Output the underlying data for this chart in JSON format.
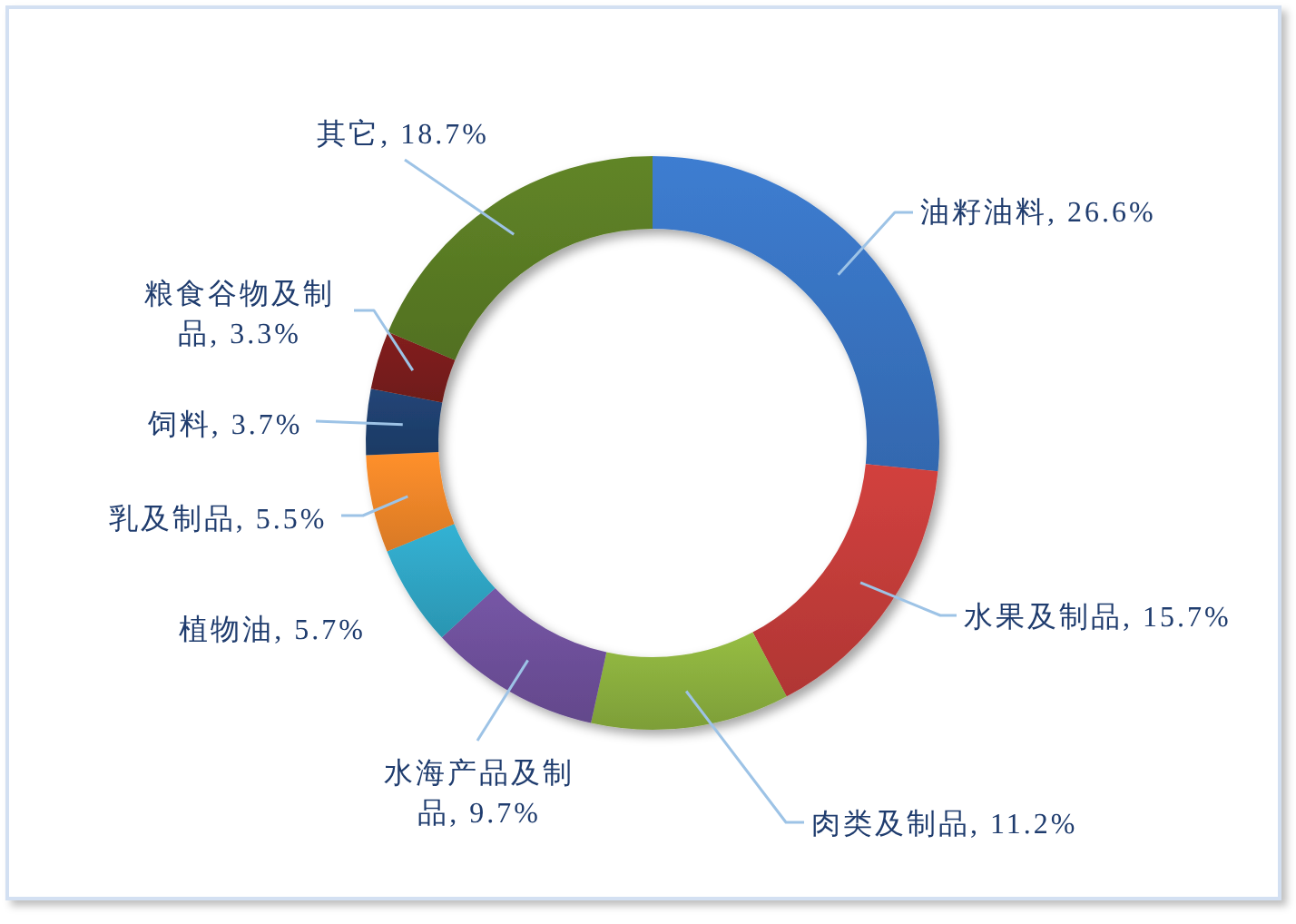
{
  "chart_data": {
    "type": "donut",
    "categories": [
      "油籽油料",
      "水果及制品",
      "肉类及制品",
      "水海产品及制品",
      "植物油",
      "乳及制品",
      "饲料",
      "粮食谷物及制品",
      "其它"
    ],
    "values": [
      26.6,
      15.7,
      11.2,
      9.7,
      5.7,
      5.5,
      3.7,
      3.3,
      18.7
    ],
    "colors": [
      "#3872bf",
      "#c03b39",
      "#89ad3d",
      "#6c4f98",
      "#2fa3c2",
      "#ec8428",
      "#1f3f6d",
      "#781d1b",
      "#597a24"
    ],
    "value_labels": [
      "26.6%",
      "15.7%",
      "11.2%",
      "9.7%",
      "5.7%",
      "5.5%",
      "3.7%",
      "3.3%",
      "18.7%"
    ]
  }
}
